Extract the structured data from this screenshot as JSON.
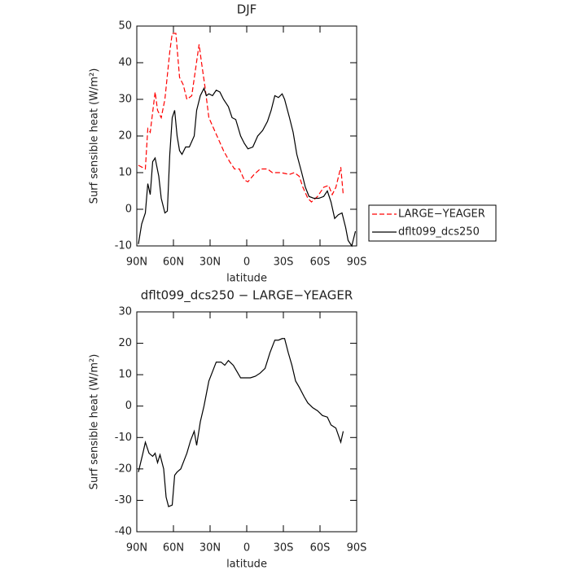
{
  "chart_data": [
    {
      "type": "line",
      "title": "DJF",
      "xlabel": "latitude",
      "ylabel": "Surf sensible heat (W/m²)",
      "xlim": [
        90,
        -90
      ],
      "xticks": [
        {
          "value": 90,
          "label": "90N"
        },
        {
          "value": 60,
          "label": "60N"
        },
        {
          "value": 30,
          "label": "30N"
        },
        0,
        {
          "value": -30,
          "label": "30S"
        },
        {
          "value": -60,
          "label": "60S"
        },
        {
          "value": -90,
          "label": "90S"
        }
      ],
      "ylim": [
        -10,
        50
      ],
      "yticks": [
        -10,
        0,
        10,
        20,
        30,
        40,
        50
      ],
      "legend": "right",
      "series": [
        {
          "name": "LARGE−YEAGER",
          "color": "#ff0000",
          "style": "dashed",
          "x": [
            88.7,
            83,
            81,
            79,
            75,
            73,
            70,
            67,
            63,
            61,
            58,
            55,
            52,
            49,
            45,
            42,
            39,
            37,
            34,
            31,
            27,
            23,
            19,
            14,
            10,
            6,
            2,
            -1,
            -6,
            -11,
            -17,
            -21,
            -28,
            -35,
            -39,
            -43,
            -46,
            -50,
            -53,
            -58,
            -63,
            -67,
            -70,
            -73,
            -77,
            -79
          ],
          "values": [
            12,
            11,
            22,
            21,
            32,
            27,
            25,
            30,
            43,
            48,
            48,
            36,
            34,
            30,
            31,
            38,
            45,
            40,
            33,
            25,
            22,
            19,
            16,
            13,
            11,
            11,
            8,
            7.5,
            9.5,
            11,
            11,
            10,
            10,
            9.5,
            10,
            9,
            6,
            3,
            2,
            3.5,
            6,
            6.5,
            4,
            6,
            11.5,
            4
          ]
        },
        {
          "name": "dflt099_dcs250",
          "color": "#000000",
          "style": "solid",
          "x": [
            88.7,
            86,
            83,
            81,
            79,
            77,
            75,
            72,
            70,
            67,
            65,
            63,
            61,
            59,
            57,
            55,
            53,
            50,
            47,
            43,
            41,
            38,
            35,
            33,
            31,
            28,
            25,
            22,
            19,
            15,
            12,
            9,
            5,
            2,
            -1,
            -5,
            -9,
            -13,
            -17,
            -20,
            -23,
            -26,
            -29,
            -31,
            -35,
            -38,
            -41,
            -45,
            -48,
            -51,
            -55,
            -59,
            -63,
            -66,
            -69,
            -72,
            -75,
            -78,
            -81,
            -83,
            -86,
            -89
          ],
          "values": [
            -9.5,
            -4,
            -1,
            7,
            4,
            13,
            14,
            9,
            3,
            -1,
            -0.5,
            15,
            25,
            27,
            20,
            16,
            15,
            17,
            17,
            20,
            27,
            31,
            33,
            31,
            31.5,
            31,
            32.5,
            32,
            30,
            28,
            25,
            24.5,
            20,
            18,
            16.5,
            17,
            20,
            21.5,
            24,
            27,
            31,
            30.5,
            31.5,
            30,
            25,
            21,
            15,
            10,
            6,
            3.5,
            3,
            3,
            3.5,
            5,
            2,
            -2.5,
            -1.5,
            -1,
            -5,
            -8.5,
            -10,
            -6
          ]
        }
      ]
    },
    {
      "type": "line",
      "title": "dflt099_dcs250 − LARGE−YEAGER",
      "xlabel": "latitude",
      "ylabel": "Surf sensible heat (W/m²)",
      "xlim": [
        90,
        -90
      ],
      "xticks": [
        {
          "value": 90,
          "label": "90N"
        },
        {
          "value": 60,
          "label": "60N"
        },
        {
          "value": 30,
          "label": "30N"
        },
        0,
        {
          "value": -30,
          "label": "30S"
        },
        {
          "value": -60,
          "label": "60S"
        },
        {
          "value": -90,
          "label": "90S"
        }
      ],
      "ylim": [
        -40,
        30
      ],
      "yticks": [
        -40,
        -30,
        -20,
        -10,
        0,
        10,
        20,
        30
      ],
      "series": [
        {
          "color": "#000000",
          "style": "solid",
          "x": [
            88.7,
            85,
            83,
            80,
            77,
            75,
            73,
            71,
            68,
            66,
            64,
            61,
            59,
            57,
            54,
            51,
            49,
            46,
            43,
            41,
            38,
            35,
            31,
            28,
            25,
            21,
            18,
            15,
            11,
            8,
            5,
            1,
            -3,
            -7,
            -11,
            -15,
            -19,
            -23,
            -26,
            -29,
            -31,
            -34,
            -37,
            -40,
            -43,
            -47,
            -50,
            -54,
            -58,
            -62,
            -66,
            -69,
            -73,
            -77,
            -79
          ],
          "values": [
            -21,
            -15,
            -11.5,
            -15,
            -16,
            -15,
            -18,
            -15.5,
            -20,
            -29,
            -32,
            -31.5,
            -22,
            -21,
            -20,
            -17,
            -15,
            -11,
            -8,
            -12.5,
            -5,
            0,
            8,
            11,
            14,
            14,
            13,
            14.5,
            13,
            11,
            9,
            9,
            9,
            9.5,
            10.5,
            12,
            17,
            21,
            21,
            21.5,
            21.5,
            17,
            13,
            8,
            6,
            3,
            1,
            -0.5,
            -1.5,
            -3,
            -3.5,
            -6,
            -7,
            -11.5,
            -8
          ]
        }
      ]
    }
  ]
}
